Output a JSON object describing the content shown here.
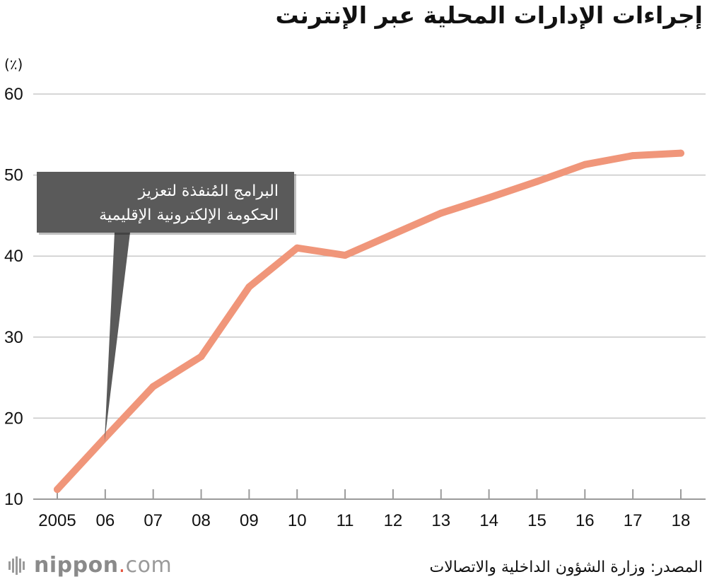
{
  "title": "إجراءات الإدارات المحلية عبر الإنترنت",
  "source": "المصدر: وزارة الشؤون الداخلية والاتصالات",
  "logo": {
    "brand": "nippon",
    "dot": ".",
    "domain": "com"
  },
  "chart_data": {
    "type": "line",
    "ylabel": "(٪)",
    "xlabel": "",
    "ylim": [
      10,
      60
    ],
    "yticks": [
      10,
      20,
      30,
      40,
      50,
      60
    ],
    "grid": true,
    "categories": [
      "2005",
      "06",
      "07",
      "08",
      "09",
      "10",
      "11",
      "12",
      "13",
      "14",
      "15",
      "16",
      "17",
      "18"
    ],
    "series": [
      {
        "values": [
          11.2,
          17.6,
          23.9,
          27.6,
          36.2,
          41.0,
          40.1,
          42.7,
          45.3,
          47.2,
          49.2,
          51.3,
          52.4,
          52.7
        ]
      }
    ],
    "line_color": "#f0967a",
    "annotation": {
      "lines": [
        "البرامج المُنفذة لتعزيز",
        "الحكومة الإلكترونية الإقليمية"
      ],
      "points_to": "06",
      "box_color": "#5a5a5a",
      "text_color": "#ffffff"
    }
  }
}
